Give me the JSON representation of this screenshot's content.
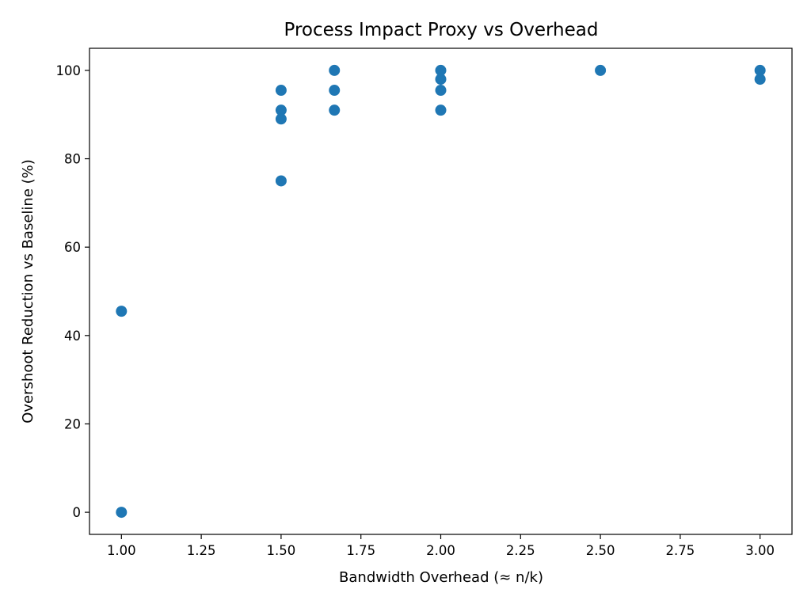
{
  "chart_data": {
    "type": "scatter",
    "title": "Process Impact Proxy vs Overhead",
    "xlabel": "Bandwidth Overhead (≈ n/k)",
    "ylabel": "Overshoot Reduction vs Baseline (%)",
    "xlim": [
      0.9,
      3.1
    ],
    "ylim": [
      -5,
      105
    ],
    "xticks": [
      1.0,
      1.25,
      1.5,
      1.75,
      2.0,
      2.25,
      2.5,
      2.75,
      3.0
    ],
    "xtick_labels": [
      "1.00",
      "1.25",
      "1.50",
      "1.75",
      "2.00",
      "2.25",
      "2.50",
      "2.75",
      "3.00"
    ],
    "yticks": [
      0,
      20,
      40,
      60,
      80,
      100
    ],
    "ytick_labels": [
      "0",
      "20",
      "40",
      "60",
      "80",
      "100"
    ],
    "grid": false,
    "color": "#1f77b4",
    "points": [
      {
        "x": 1.0,
        "y": 45.5
      },
      {
        "x": 1.0,
        "y": 0.0
      },
      {
        "x": 1.5,
        "y": 95.5
      },
      {
        "x": 1.5,
        "y": 91.0
      },
      {
        "x": 1.5,
        "y": 89.0
      },
      {
        "x": 1.5,
        "y": 75.0
      },
      {
        "x": 1.667,
        "y": 100.0
      },
      {
        "x": 1.667,
        "y": 95.5
      },
      {
        "x": 1.667,
        "y": 91.0
      },
      {
        "x": 2.0,
        "y": 100.0
      },
      {
        "x": 2.0,
        "y": 98.0
      },
      {
        "x": 2.0,
        "y": 95.5
      },
      {
        "x": 2.0,
        "y": 91.0
      },
      {
        "x": 2.5,
        "y": 100.0
      },
      {
        "x": 3.0,
        "y": 100.0
      },
      {
        "x": 3.0,
        "y": 98.0
      }
    ]
  }
}
